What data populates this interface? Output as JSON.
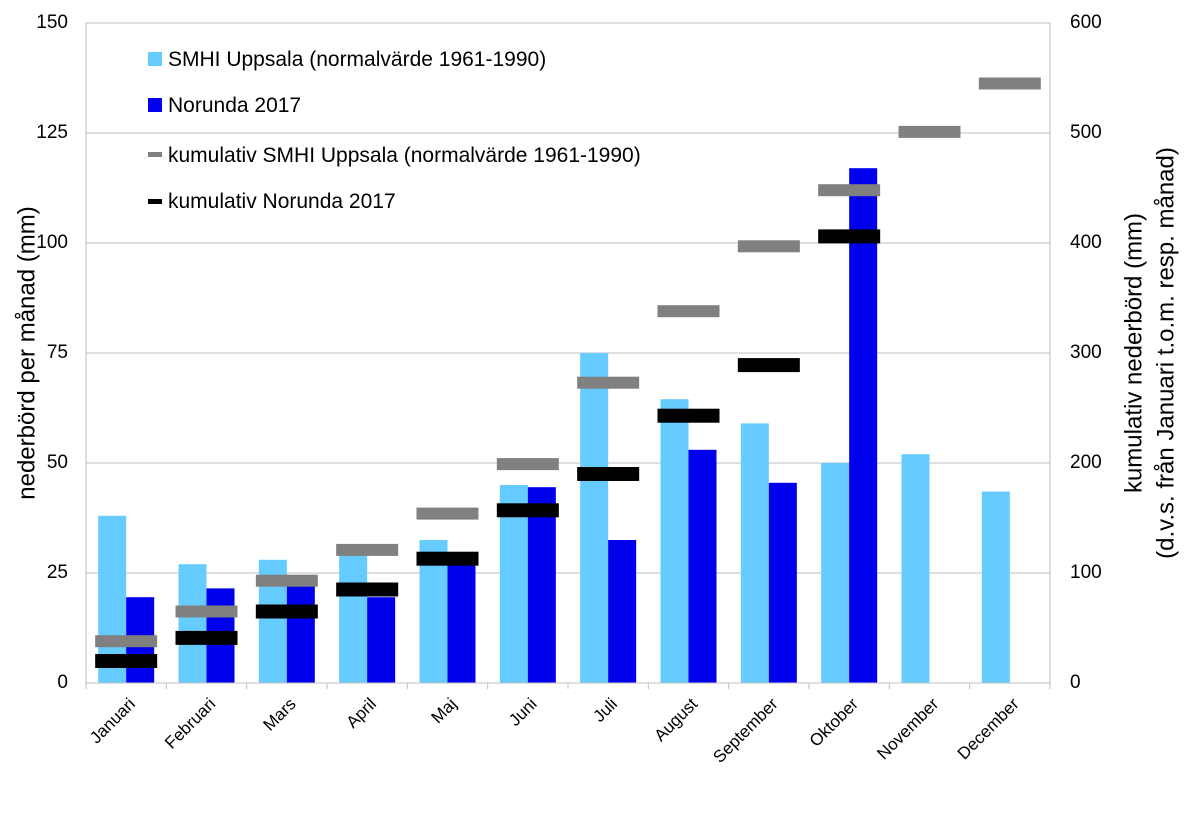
{
  "chart_data": {
    "type": "bar",
    "categories": [
      "Januari",
      "Februari",
      "Mars",
      "April",
      "Maj",
      "Juni",
      "Juli",
      "August",
      "September",
      "Oktober",
      "November",
      "December"
    ],
    "series": [
      {
        "name": "SMHI Uppsala (normalvärde 1961-1990)",
        "kind": "bar",
        "axis": "left",
        "color": "#66ccff",
        "values": [
          38,
          27,
          28,
          30,
          32.5,
          45,
          75,
          64.5,
          59,
          50,
          52,
          43.5
        ]
      },
      {
        "name": "Norunda 2017",
        "kind": "bar",
        "axis": "left",
        "color": "#0000ee",
        "values": [
          19.5,
          21.5,
          22.5,
          19.5,
          28,
          44.5,
          32.5,
          53,
          45.5,
          117,
          null,
          null
        ]
      },
      {
        "name": "kumulativ SMHI Uppsala (normalvärde 1961-1990)",
        "kind": "marker",
        "axis": "right",
        "color": "#808080",
        "values": [
          38,
          65,
          93,
          121,
          154,
          199,
          273,
          338,
          397,
          448,
          501,
          545
        ]
      },
      {
        "name": "kumulativ Norunda 2017",
        "kind": "marker",
        "axis": "right",
        "color": "#000000",
        "values": [
          20,
          41,
          65,
          85,
          113,
          157,
          190,
          243,
          289,
          406,
          null,
          null
        ]
      }
    ],
    "ylabel": "nederbörd per månad (mm)",
    "y2label_line1": "kumulativ nederbörd (mm)",
    "y2label_line2": "(d.v.s. från Januari t.o.m. resp. månad)",
    "ylim": [
      0,
      150
    ],
    "y2lim": [
      0,
      600
    ],
    "yticks": [
      0,
      25,
      50,
      75,
      100,
      125,
      150
    ],
    "y2ticks": [
      0,
      100,
      200,
      300,
      400,
      500,
      600
    ],
    "grid": true,
    "legend_position": "top-left"
  }
}
